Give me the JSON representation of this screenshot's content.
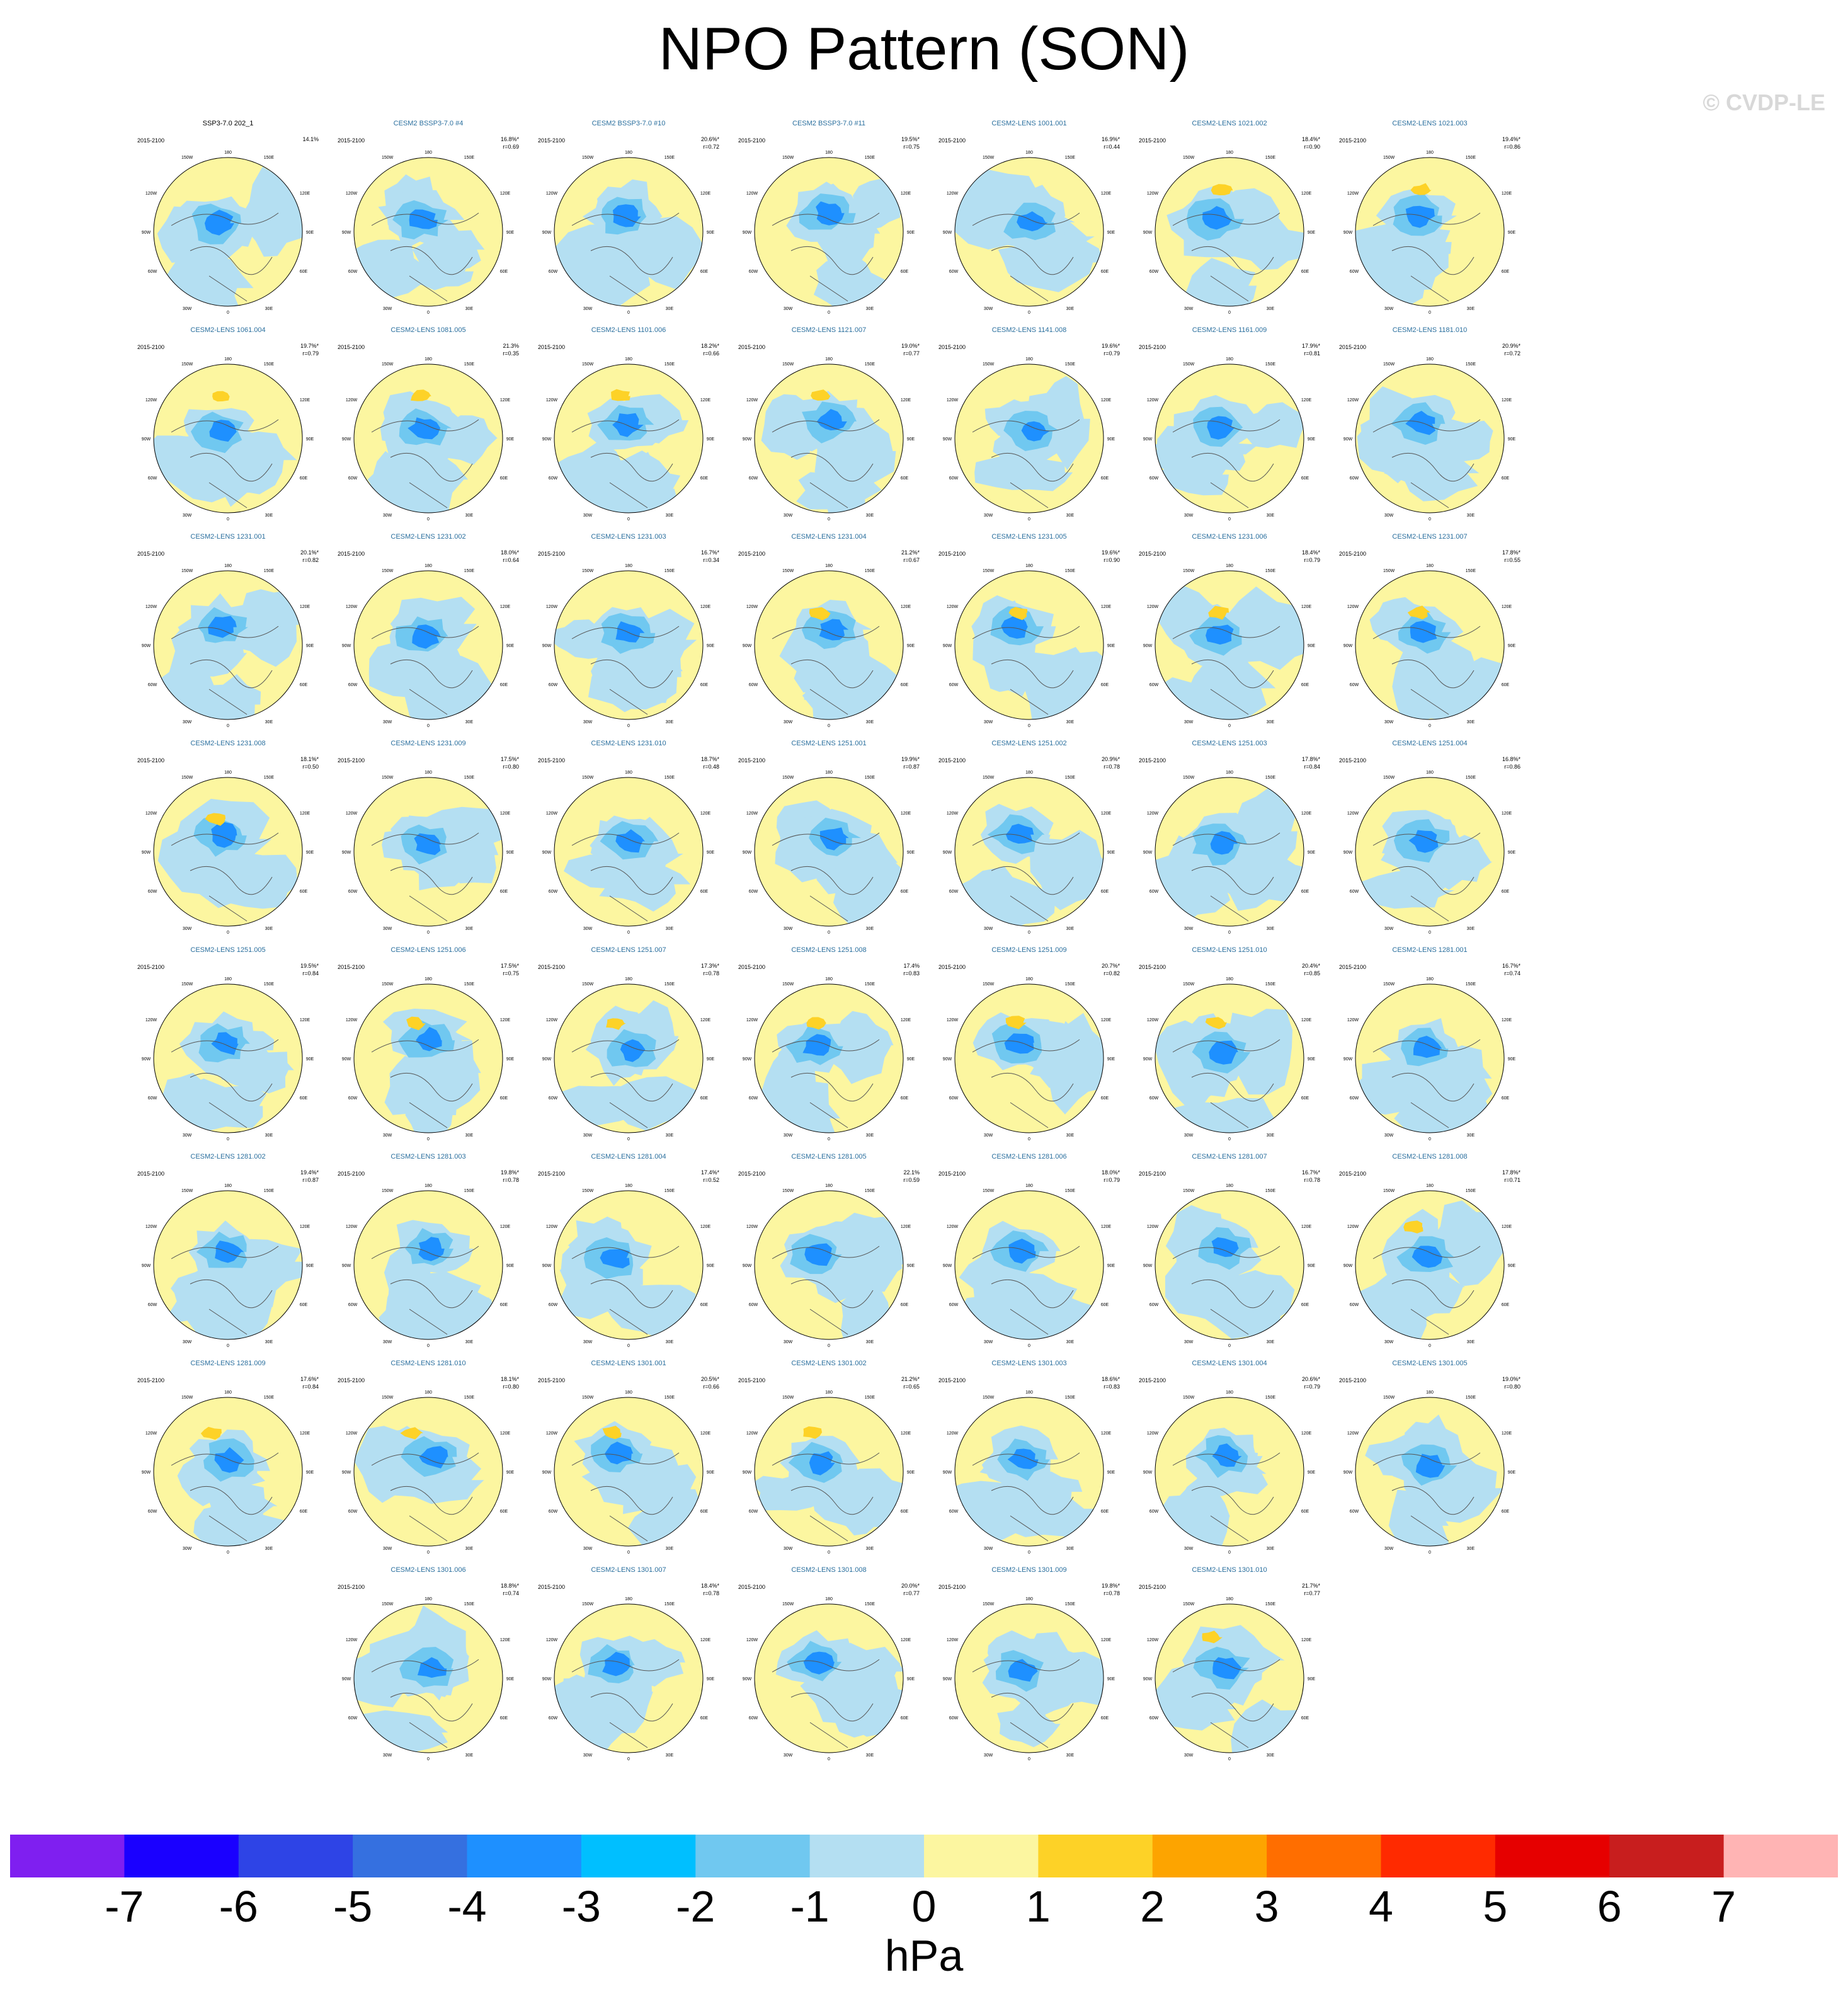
{
  "title": "NPO Pattern (SON)",
  "watermark": "© CVDP-LE",
  "common_labels": {
    "period": "2015-2100",
    "lon_180": "180",
    "lon_150w": "150W",
    "lon_150e": "150E",
    "lon_120w": "120W",
    "lon_120e": "120E",
    "lon_90w": "90W",
    "lon_90e": "90E",
    "lon_60w": "60W",
    "lon_60e": "60E",
    "lon_30w": "30W",
    "lon_30e": "30E",
    "lon_0": "0"
  },
  "panels": [
    {
      "title": "SSP3-7.0 202_1",
      "pct": "14.1%",
      "r": "",
      "obs": true
    },
    {
      "title": "CESM2 BSSP3-7.0 #4",
      "pct": "16.8%*",
      "r": "r=0.69"
    },
    {
      "title": "CESM2 BSSP3-7.0 #10",
      "pct": "20.6%*",
      "r": "r=0.72"
    },
    {
      "title": "CESM2 BSSP3-7.0 #11",
      "pct": "19.5%*",
      "r": "r=0.75"
    },
    {
      "title": "CESM2-LENS 1001.001",
      "pct": "16.9%*",
      "r": "r=0.44"
    },
    {
      "title": "CESM2-LENS 1021.002",
      "pct": "18.4%*",
      "r": "r=0.90"
    },
    {
      "title": "CESM2-LENS 1021.003",
      "pct": "19.4%*",
      "r": "r=0.86"
    },
    {
      "title": "CESM2-LENS 1061.004",
      "pct": "19.7%*",
      "r": "r=0.79"
    },
    {
      "title": "CESM2-LENS 1081.005",
      "pct": "21.3%",
      "r": "r=0.35"
    },
    {
      "title": "CESM2-LENS 1101.006",
      "pct": "18.2%*",
      "r": "r=0.66"
    },
    {
      "title": "CESM2-LENS 1121.007",
      "pct": "19.0%*",
      "r": "r=0.77"
    },
    {
      "title": "CESM2-LENS 1141.008",
      "pct": "19.6%*",
      "r": "r=0.79"
    },
    {
      "title": "CESM2-LENS 1161.009",
      "pct": "17.9%*",
      "r": "r=0.81"
    },
    {
      "title": "CESM2-LENS 1181.010",
      "pct": "20.9%*",
      "r": "r=0.72"
    },
    {
      "title": "CESM2-LENS 1231.001",
      "pct": "20.1%*",
      "r": "r=0.82"
    },
    {
      "title": "CESM2-LENS 1231.002",
      "pct": "18.0%*",
      "r": "r=0.64"
    },
    {
      "title": "CESM2-LENS 1231.003",
      "pct": "16.7%*",
      "r": "r=0.34"
    },
    {
      "title": "CESM2-LENS 1231.004",
      "pct": "21.2%*",
      "r": "r=0.67"
    },
    {
      "title": "CESM2-LENS 1231.005",
      "pct": "19.6%*",
      "r": "r=0.90"
    },
    {
      "title": "CESM2-LENS 1231.006",
      "pct": "18.4%*",
      "r": "r=0.79"
    },
    {
      "title": "CESM2-LENS 1231.007",
      "pct": "17.8%*",
      "r": "r=0.55"
    },
    {
      "title": "CESM2-LENS 1231.008",
      "pct": "18.1%*",
      "r": "r=0.50"
    },
    {
      "title": "CESM2-LENS 1231.009",
      "pct": "17.5%*",
      "r": "r=0.80"
    },
    {
      "title": "CESM2-LENS 1231.010",
      "pct": "18.7%*",
      "r": "r=0.48"
    },
    {
      "title": "CESM2-LENS 1251.001",
      "pct": "19.9%*",
      "r": "r=0.87"
    },
    {
      "title": "CESM2-LENS 1251.002",
      "pct": "20.9%*",
      "r": "r=0.78"
    },
    {
      "title": "CESM2-LENS 1251.003",
      "pct": "17.8%*",
      "r": "r=0.84"
    },
    {
      "title": "CESM2-LENS 1251.004",
      "pct": "16.8%*",
      "r": "r=0.86"
    },
    {
      "title": "CESM2-LENS 1251.005",
      "pct": "19.5%*",
      "r": "r=0.84"
    },
    {
      "title": "CESM2-LENS 1251.006",
      "pct": "17.5%*",
      "r": "r=0.75"
    },
    {
      "title": "CESM2-LENS 1251.007",
      "pct": "17.3%*",
      "r": "r=0.78"
    },
    {
      "title": "CESM2-LENS 1251.008",
      "pct": "17.4%",
      "r": "r=0.83"
    },
    {
      "title": "CESM2-LENS 1251.009",
      "pct": "20.7%*",
      "r": "r=0.82"
    },
    {
      "title": "CESM2-LENS 1251.010",
      "pct": "20.4%*",
      "r": "r=0.85"
    },
    {
      "title": "CESM2-LENS 1281.001",
      "pct": "16.7%*",
      "r": "r=0.74"
    },
    {
      "title": "CESM2-LENS 1281.002",
      "pct": "19.4%*",
      "r": "r=0.87"
    },
    {
      "title": "CESM2-LENS 1281.003",
      "pct": "19.8%*",
      "r": "r=0.78"
    },
    {
      "title": "CESM2-LENS 1281.004",
      "pct": "17.4%*",
      "r": "r=0.52"
    },
    {
      "title": "CESM2-LENS 1281.005",
      "pct": "22.1%",
      "r": "r=0.59"
    },
    {
      "title": "CESM2-LENS 1281.006",
      "pct": "18.0%*",
      "r": "r=0.79"
    },
    {
      "title": "CESM2-LENS 1281.007",
      "pct": "16.7%*",
      "r": "r=0.78"
    },
    {
      "title": "CESM2-LENS 1281.008",
      "pct": "17.8%*",
      "r": "r=0.71"
    },
    {
      "title": "CESM2-LENS 1281.009",
      "pct": "17.6%*",
      "r": "r=0.84"
    },
    {
      "title": "CESM2-LENS 1281.010",
      "pct": "18.1%*",
      "r": "r=0.80"
    },
    {
      "title": "CESM2-LENS 1301.001",
      "pct": "20.5%*",
      "r": "r=0.66"
    },
    {
      "title": "CESM2-LENS 1301.002",
      "pct": "21.2%*",
      "r": "r=0.65"
    },
    {
      "title": "CESM2-LENS 1301.003",
      "pct": "18.6%*",
      "r": "r=0.83"
    },
    {
      "title": "CESM2-LENS 1301.004",
      "pct": "20.6%*",
      "r": "r=0.79"
    },
    {
      "title": "CESM2-LENS 1301.005",
      "pct": "19.0%*",
      "r": "r=0.80"
    },
    {
      "title": "CESM2-LENS 1301.006",
      "pct": "18.8%*",
      "r": "r=0.74"
    },
    {
      "title": "CESM2-LENS 1301.007",
      "pct": "18.4%*",
      "r": "r=0.78"
    },
    {
      "title": "CESM2-LENS 1301.008",
      "pct": "20.0%*",
      "r": "r=0.77"
    },
    {
      "title": "CESM2-LENS 1301.009",
      "pct": "19.8%*",
      "r": "r=0.78"
    },
    {
      "title": "CESM2-LENS 1301.010",
      "pct": "21.7%*",
      "r": "r=0.77"
    }
  ],
  "colorbar": {
    "colors": [
      "#7f1ff0",
      "#1a00ff",
      "#2e44e6",
      "#3570e0",
      "#1e90ff",
      "#00bfff",
      "#70c8f0",
      "#b4dff2",
      "#fcf6a0",
      "#fdd227",
      "#fda400",
      "#ff6e00",
      "#ff2a00",
      "#e60000",
      "#c81e1e",
      "#ffb4b4"
    ],
    "ticks": [
      "-7",
      "-6",
      "-5",
      "-4",
      "-3",
      "-2",
      "-1",
      "0",
      "1",
      "2",
      "3",
      "4",
      "5",
      "6",
      "7"
    ],
    "units": "hPa"
  }
}
